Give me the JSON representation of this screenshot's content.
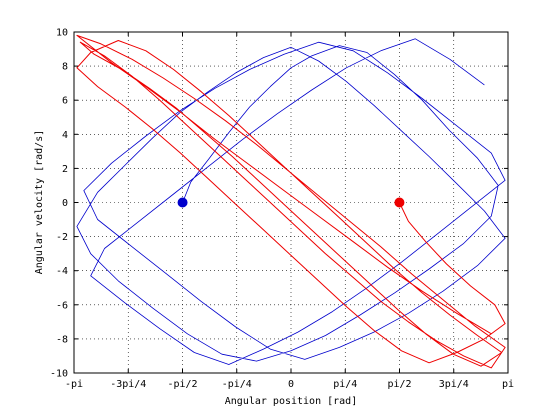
{
  "chart_data": {
    "type": "line",
    "title": "",
    "xlabel": "Angular position [rad]",
    "ylabel": "Angular velocity [rad/s]",
    "xlim": [
      -3.14159265,
      3.14159265
    ],
    "ylim": [
      -10,
      10
    ],
    "grid": true,
    "x_ticks": [
      {
        "value": -3.14159265,
        "label": "-pi"
      },
      {
        "value": -2.35619449,
        "label": "-3pi/4"
      },
      {
        "value": -1.57079633,
        "label": "-pi/2"
      },
      {
        "value": -0.78539816,
        "label": "-pi/4"
      },
      {
        "value": 0,
        "label": "0"
      },
      {
        "value": 0.78539816,
        "label": "pi/4"
      },
      {
        "value": 1.57079633,
        "label": "pi/2"
      },
      {
        "value": 2.35619449,
        "label": "3pi/4"
      },
      {
        "value": 3.14159265,
        "label": "pi"
      }
    ],
    "y_ticks": [
      {
        "value": -10,
        "label": "-10"
      },
      {
        "value": -8,
        "label": "-8"
      },
      {
        "value": -6,
        "label": "-6"
      },
      {
        "value": -4,
        "label": "-4"
      },
      {
        "value": -2,
        "label": "-2"
      },
      {
        "value": 0,
        "label": "0"
      },
      {
        "value": 2,
        "label": "2"
      },
      {
        "value": 4,
        "label": "4"
      },
      {
        "value": 6,
        "label": "6"
      },
      {
        "value": 8,
        "label": "8"
      },
      {
        "value": 10,
        "label": "10"
      }
    ],
    "series": [
      {
        "color": "#0000cc",
        "marker": {
          "x": -1.57,
          "y": 0
        },
        "x": [
          -1.57,
          -1.45,
          -1.2,
          -0.9,
          -0.6,
          -0.3,
          0.0,
          0.3,
          0.7,
          1.1,
          1.5,
          1.9,
          2.3,
          2.7,
          3.0,
          2.9,
          2.5,
          2.0,
          1.5,
          1.0,
          0.5,
          0.0,
          -0.5,
          -1.0,
          -1.5,
          -2.0,
          -2.5,
          -2.9,
          -3.1,
          -2.8,
          -2.4,
          -2.0,
          -1.6,
          -1.2,
          -0.8,
          -0.4,
          0.0,
          0.4,
          0.8,
          1.2,
          1.6,
          2.0,
          2.4,
          2.8,
          3.1,
          2.7,
          2.2,
          1.7,
          1.2,
          0.7,
          0.2,
          -0.3,
          -0.8,
          -1.3,
          -1.8,
          -2.3,
          -2.8,
          -3.0,
          -2.6,
          -2.1,
          -1.6,
          -1.1,
          -0.6,
          -0.1,
          0.4,
          0.9,
          1.4,
          1.9,
          2.4,
          2.9,
          3.1,
          2.6,
          2.1,
          1.6,
          1.1,
          0.6,
          0.1,
          -0.4,
          -0.9,
          -1.4,
          -1.9,
          -2.4,
          -2.9,
          -2.7,
          -2.2,
          -1.7,
          -1.2,
          -0.7,
          -0.2,
          0.3,
          0.8,
          1.3,
          1.8,
          2.3,
          2.8
        ],
        "y": [
          0.0,
          1.2,
          2.5,
          4.1,
          5.6,
          6.8,
          7.9,
          8.6,
          9.2,
          8.8,
          7.5,
          6.0,
          4.2,
          2.6,
          1.0,
          -0.8,
          -2.4,
          -3.9,
          -5.3,
          -6.6,
          -7.8,
          -8.7,
          -9.3,
          -8.9,
          -7.7,
          -6.2,
          -4.6,
          -3.0,
          -1.4,
          0.6,
          2.2,
          3.8,
          5.3,
          6.5,
          7.6,
          8.5,
          9.1,
          8.3,
          7.1,
          5.7,
          4.2,
          2.7,
          1.1,
          -0.5,
          -2.1,
          -3.7,
          -5.2,
          -6.5,
          -7.6,
          -8.5,
          -9.2,
          -8.6,
          -7.3,
          -5.8,
          -4.2,
          -2.6,
          -1.0,
          0.7,
          2.3,
          3.9,
          5.4,
          6.7,
          7.8,
          8.7,
          9.4,
          8.9,
          7.6,
          6.1,
          4.5,
          2.9,
          1.3,
          -0.3,
          -1.9,
          -3.5,
          -5.0,
          -6.4,
          -7.6,
          -8.6,
          -9.5,
          -8.8,
          -7.4,
          -5.9,
          -4.3,
          -2.7,
          -1.1,
          0.5,
          2.1,
          3.7,
          5.2,
          6.6,
          7.9,
          8.9,
          9.6,
          8.4,
          6.9
        ]
      },
      {
        "color": "#ee0000",
        "marker": {
          "x": 1.57,
          "y": 0
        },
        "x": [
          1.57,
          1.7,
          1.95,
          2.25,
          2.6,
          2.95,
          3.1,
          2.8,
          2.4,
          2.0,
          1.6,
          1.2,
          0.8,
          0.4,
          0.0,
          -0.4,
          -0.8,
          -1.2,
          -1.6,
          -2.0,
          -2.4,
          -2.8,
          -3.1,
          -2.9,
          -2.5,
          -2.1,
          -1.7,
          -1.3,
          -0.9,
          -0.5,
          -0.1,
          0.3,
          0.7,
          1.1,
          1.5,
          1.9,
          2.3,
          2.7,
          3.05,
          2.75,
          2.35,
          1.95,
          1.55,
          1.15,
          0.75,
          0.35,
          -0.05,
          -0.45,
          -0.85,
          -1.25,
          -1.65,
          -2.05,
          -2.45,
          -2.85,
          -3.05,
          -2.7,
          -2.3,
          -1.9,
          -1.5,
          -1.1,
          -0.7,
          -0.3,
          0.1,
          0.5,
          0.9,
          1.3,
          1.7,
          2.1,
          2.5,
          2.9,
          3.1,
          2.65,
          2.2,
          1.75,
          1.3,
          0.85,
          0.4,
          -0.05,
          -0.5,
          -0.95,
          -1.4,
          -1.85,
          -2.3,
          -2.75,
          -3.1,
          -2.6,
          -2.1,
          -1.6,
          -1.1,
          -0.6,
          -0.1,
          0.4,
          0.9,
          1.4,
          1.9,
          2.4,
          2.9
        ],
        "y": [
          0.0,
          -1.1,
          -2.3,
          -3.6,
          -4.9,
          -6.0,
          -7.1,
          -8.0,
          -8.8,
          -9.4,
          -8.7,
          -7.5,
          -6.1,
          -4.6,
          -3.1,
          -1.6,
          -0.1,
          1.4,
          2.9,
          4.3,
          5.6,
          6.8,
          7.9,
          8.8,
          9.5,
          8.9,
          7.8,
          6.5,
          5.1,
          3.6,
          2.1,
          0.6,
          -0.9,
          -2.4,
          -3.9,
          -5.3,
          -6.6,
          -7.8,
          -8.8,
          -9.6,
          -8.9,
          -7.7,
          -6.3,
          -4.8,
          -3.3,
          -1.8,
          -0.3,
          1.2,
          2.7,
          4.1,
          5.5,
          6.7,
          7.8,
          8.7,
          9.4,
          8.6,
          7.4,
          6.0,
          4.5,
          3.0,
          1.5,
          0.0,
          -1.5,
          -3.0,
          -4.4,
          -5.8,
          -7.0,
          -8.1,
          -9.0,
          -9.7,
          -8.5,
          -7.2,
          -5.7,
          -4.2,
          -2.6,
          -1.1,
          0.4,
          1.9,
          3.4,
          4.8,
          6.1,
          7.3,
          8.4,
          9.3,
          9.8,
          8.2,
          6.8,
          5.3,
          3.7,
          2.2,
          0.7,
          -0.8,
          -2.3,
          -3.8,
          -5.2,
          -6.5,
          -7.7
        ]
      }
    ]
  }
}
